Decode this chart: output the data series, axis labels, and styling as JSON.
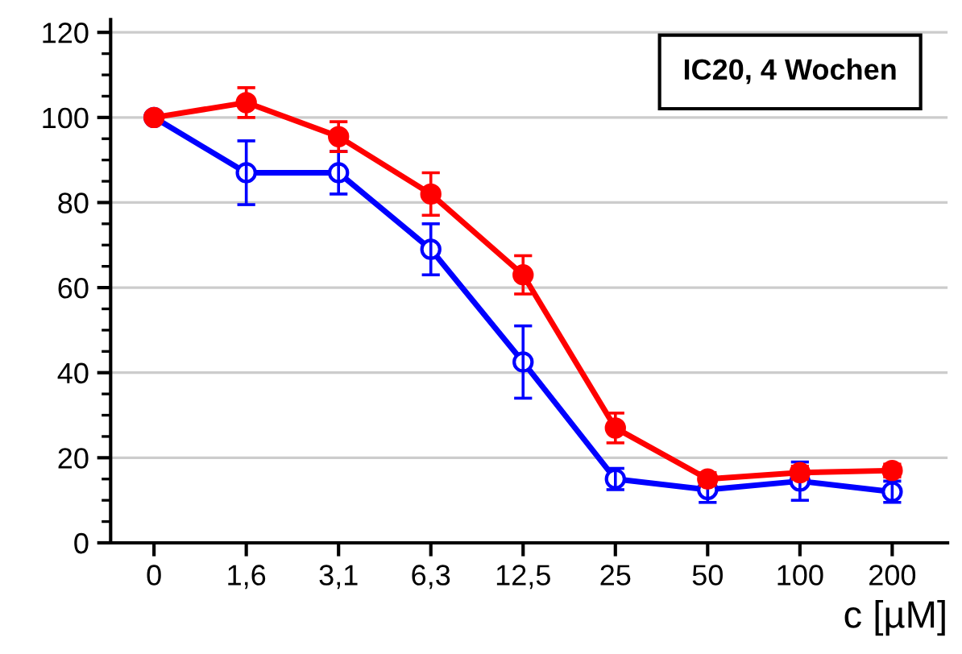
{
  "chart_data": {
    "type": "line",
    "categories": [
      "0",
      "1,6",
      "3,1",
      "6,3",
      "12,5",
      "25",
      "50",
      "100",
      "200"
    ],
    "series": [
      {
        "color": "#ff0000",
        "marker": "circle",
        "values": [
          100,
          103.5,
          95.5,
          82,
          63,
          27,
          15,
          16.5,
          17
        ],
        "errors": [
          null,
          3.5,
          3.5,
          5,
          4.5,
          3.5,
          1.5,
          1.5,
          1.5
        ]
      },
      {
        "color": "#0000ff",
        "marker": "circle",
        "values": [
          100,
          87,
          87,
          69,
          42.5,
          15,
          12.5,
          14.5,
          12
        ],
        "errors": [
          null,
          7.5,
          5,
          6,
          8.5,
          2.5,
          3,
          4.5,
          2.5
        ]
      }
    ],
    "ylim": [
      0,
      123
    ],
    "yticks": [
      0,
      20,
      40,
      60,
      80,
      100,
      120
    ],
    "grid": "y",
    "xlabel": "c [µM]",
    "annotations": [
      "IC20, 4 Wochen"
    ],
    "legend": false
  }
}
